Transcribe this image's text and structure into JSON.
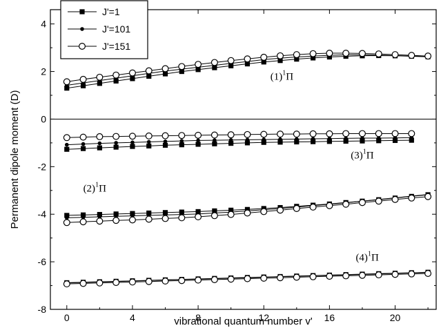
{
  "chart_data": {
    "type": "line",
    "xlabel": "vibrational quantum number v'",
    "ylabel": "Permanent dipole moment (D)",
    "xlim": [
      -1,
      22.5
    ],
    "ylim": [
      -8,
      4.6
    ],
    "xticks": [
      0,
      4,
      8,
      12,
      16,
      20
    ],
    "yticks": [
      -8,
      -6,
      -4,
      -2,
      0,
      2,
      4
    ],
    "zero_line": true,
    "legend": [
      {
        "label": "J'=1",
        "marker": "square-filled"
      },
      {
        "label": "J'=101",
        "marker": "circle-filled-small"
      },
      {
        "label": "J'=151",
        "marker": "circle-open"
      }
    ],
    "annotations": [
      {
        "text": "(1)",
        "sup": "1",
        "tail": "Π",
        "x": 12.4,
        "y": 1.65
      },
      {
        "text": "(3)",
        "sup": "1",
        "tail": "Π",
        "x": 17.3,
        "y": -1.65
      },
      {
        "text": "(2)",
        "sup": "1",
        "tail": "Π",
        "x": 1.0,
        "y": -3.05
      },
      {
        "text": "(4)",
        "sup": "1",
        "tail": "Π",
        "x": 17.6,
        "y": -5.95
      }
    ],
    "series": [
      {
        "name": "J'=1",
        "state": "(1)1Π",
        "marker": "square-filled",
        "x": [
          0,
          1,
          2,
          3,
          4,
          5,
          6,
          7,
          8,
          9,
          10,
          11,
          12,
          13,
          14,
          15,
          16,
          17,
          18,
          19,
          20,
          21,
          22
        ],
        "y": [
          1.3,
          1.4,
          1.5,
          1.6,
          1.7,
          1.8,
          1.9,
          2.0,
          2.08,
          2.16,
          2.24,
          2.32,
          2.4,
          2.46,
          2.52,
          2.57,
          2.61,
          2.64,
          2.66,
          2.67,
          2.66,
          2.64,
          2.62
        ]
      },
      {
        "name": "J'=101",
        "state": "(1)1Π",
        "marker": "circle-filled-small",
        "x": [
          0,
          1,
          2,
          3,
          4,
          5,
          6,
          7,
          8,
          9,
          10,
          11,
          12,
          13,
          14,
          15,
          16,
          17,
          18,
          19,
          20,
          21,
          22
        ],
        "y": [
          1.42,
          1.52,
          1.62,
          1.72,
          1.82,
          1.92,
          2.02,
          2.1,
          2.18,
          2.26,
          2.34,
          2.42,
          2.5,
          2.56,
          2.61,
          2.65,
          2.68,
          2.7,
          2.7,
          2.69,
          2.67,
          2.65,
          2.63
        ]
      },
      {
        "name": "J'=151",
        "state": "(1)1Π",
        "marker": "circle-open",
        "x": [
          0,
          1,
          2,
          3,
          4,
          5,
          6,
          7,
          8,
          9,
          10,
          11,
          12,
          13,
          14,
          15,
          16,
          17,
          18,
          19,
          20,
          21,
          22
        ],
        "y": [
          1.57,
          1.67,
          1.76,
          1.85,
          1.94,
          2.03,
          2.12,
          2.21,
          2.3,
          2.38,
          2.46,
          2.53,
          2.6,
          2.66,
          2.71,
          2.75,
          2.77,
          2.77,
          2.76,
          2.74,
          2.71,
          2.68,
          2.65
        ]
      },
      {
        "name": "J'=1",
        "state": "(3)1Π",
        "marker": "square-filled",
        "x": [
          0,
          1,
          2,
          3,
          4,
          5,
          6,
          7,
          8,
          9,
          10,
          11,
          12,
          13,
          14,
          15,
          16,
          17,
          18,
          19,
          20,
          21
        ],
        "y": [
          -1.27,
          -1.24,
          -1.21,
          -1.18,
          -1.15,
          -1.13,
          -1.1,
          -1.08,
          -1.06,
          -1.04,
          -1.02,
          -1.0,
          -0.98,
          -0.97,
          -0.96,
          -0.95,
          -0.94,
          -0.93,
          -0.92,
          -0.91,
          -0.9,
          -0.89
        ]
      },
      {
        "name": "J'=101",
        "state": "(3)1Π",
        "marker": "circle-filled-small",
        "x": [
          0,
          1,
          2,
          3,
          4,
          5,
          6,
          7,
          8,
          9,
          10,
          11,
          12,
          13,
          14,
          15,
          16,
          17,
          18,
          19,
          20,
          21
        ],
        "y": [
          -1.08,
          -1.05,
          -1.02,
          -1.0,
          -0.98,
          -0.96,
          -0.94,
          -0.92,
          -0.9,
          -0.89,
          -0.88,
          -0.87,
          -0.86,
          -0.85,
          -0.84,
          -0.83,
          -0.82,
          -0.81,
          -0.8,
          -0.8,
          -0.79,
          -0.78
        ]
      },
      {
        "name": "J'=151",
        "state": "(3)1Π",
        "marker": "circle-open",
        "x": [
          0,
          1,
          2,
          3,
          4,
          5,
          6,
          7,
          8,
          9,
          10,
          11,
          12,
          13,
          14,
          15,
          16,
          17,
          18,
          19,
          20,
          21
        ],
        "y": [
          -0.78,
          -0.76,
          -0.74,
          -0.73,
          -0.72,
          -0.71,
          -0.7,
          -0.69,
          -0.68,
          -0.67,
          -0.66,
          -0.65,
          -0.64,
          -0.63,
          -0.63,
          -0.62,
          -0.62,
          -0.61,
          -0.61,
          -0.61,
          -0.61,
          -0.61
        ]
      },
      {
        "name": "J'=1",
        "state": "(2)1Π",
        "marker": "square-filled",
        "x": [
          0,
          1,
          2,
          3,
          4,
          5,
          6,
          7,
          8,
          9,
          10,
          11,
          12,
          13,
          14,
          15,
          16,
          17,
          18,
          19,
          20,
          21,
          22
        ],
        "y": [
          -4.05,
          -4.03,
          -4.01,
          -3.99,
          -3.97,
          -3.95,
          -3.93,
          -3.91,
          -3.89,
          -3.86,
          -3.83,
          -3.8,
          -3.76,
          -3.72,
          -3.67,
          -3.62,
          -3.57,
          -3.51,
          -3.45,
          -3.39,
          -3.32,
          -3.25,
          -3.18
        ]
      },
      {
        "name": "J'=101",
        "state": "(2)1Π",
        "marker": "circle-filled-small",
        "x": [
          0,
          1,
          2,
          3,
          4,
          5,
          6,
          7,
          8,
          9,
          10,
          11,
          12,
          13,
          14,
          15,
          16,
          17,
          18,
          19,
          20,
          21,
          22
        ],
        "y": [
          -4.15,
          -4.13,
          -4.11,
          -4.09,
          -4.07,
          -4.05,
          -4.03,
          -4.01,
          -3.99,
          -3.95,
          -3.91,
          -3.86,
          -3.81,
          -3.76,
          -3.7,
          -3.64,
          -3.58,
          -3.52,
          -3.45,
          -3.38,
          -3.31,
          -3.24,
          -3.17
        ]
      },
      {
        "name": "J'=151",
        "state": "(2)1Π",
        "marker": "circle-open",
        "x": [
          0,
          1,
          2,
          3,
          4,
          5,
          6,
          7,
          8,
          9,
          10,
          11,
          12,
          13,
          14,
          15,
          16,
          17,
          18,
          19,
          20,
          21,
          22
        ],
        "y": [
          -4.35,
          -4.32,
          -4.29,
          -4.26,
          -4.24,
          -4.21,
          -4.18,
          -4.15,
          -4.11,
          -4.06,
          -4.01,
          -3.95,
          -3.89,
          -3.83,
          -3.76,
          -3.7,
          -3.64,
          -3.58,
          -3.51,
          -3.45,
          -3.38,
          -3.32,
          -3.26
        ]
      },
      {
        "name": "J'=1",
        "state": "(4)1Π",
        "marker": "square-filled",
        "x": [
          0,
          1,
          2,
          3,
          4,
          5,
          6,
          7,
          8,
          9,
          10,
          11,
          12,
          13,
          14,
          15,
          16,
          17,
          18,
          19,
          20,
          21,
          22
        ],
        "y": [
          -6.88,
          -6.86,
          -6.84,
          -6.82,
          -6.8,
          -6.78,
          -6.76,
          -6.74,
          -6.72,
          -6.7,
          -6.68,
          -6.66,
          -6.64,
          -6.62,
          -6.6,
          -6.58,
          -6.56,
          -6.54,
          -6.52,
          -6.5,
          -6.48,
          -6.46,
          -6.44
        ]
      },
      {
        "name": "J'=101",
        "state": "(4)1Π",
        "marker": "circle-filled-small",
        "x": [
          0,
          1,
          2,
          3,
          4,
          5,
          6,
          7,
          8,
          9,
          10,
          11,
          12,
          13,
          14,
          15,
          16,
          17,
          18,
          19,
          20,
          21,
          22
        ],
        "y": [
          -6.89,
          -6.87,
          -6.85,
          -6.83,
          -6.81,
          -6.79,
          -6.77,
          -6.75,
          -6.73,
          -6.71,
          -6.69,
          -6.67,
          -6.65,
          -6.63,
          -6.61,
          -6.59,
          -6.57,
          -6.55,
          -6.53,
          -6.51,
          -6.49,
          -6.47,
          -6.45
        ]
      },
      {
        "name": "J'=151",
        "state": "(4)1Π",
        "marker": "circle-open",
        "x": [
          0,
          1,
          2,
          3,
          4,
          5,
          6,
          7,
          8,
          9,
          10,
          11,
          12,
          13,
          14,
          15,
          16,
          17,
          18,
          19,
          20,
          21,
          22
        ],
        "y": [
          -6.93,
          -6.91,
          -6.89,
          -6.87,
          -6.85,
          -6.83,
          -6.81,
          -6.79,
          -6.77,
          -6.75,
          -6.73,
          -6.71,
          -6.69,
          -6.67,
          -6.65,
          -6.63,
          -6.61,
          -6.59,
          -6.57,
          -6.55,
          -6.53,
          -6.51,
          -6.49
        ]
      }
    ]
  }
}
